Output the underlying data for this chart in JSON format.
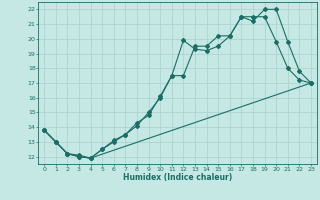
{
  "xlabel": "Humidex (Indice chaleur)",
  "xlim": [
    -0.5,
    23.5
  ],
  "ylim": [
    11.5,
    22.5
  ],
  "xticks": [
    0,
    1,
    2,
    3,
    4,
    5,
    6,
    7,
    8,
    9,
    10,
    11,
    12,
    13,
    14,
    15,
    16,
    17,
    18,
    19,
    20,
    21,
    22,
    23
  ],
  "yticks": [
    12,
    13,
    14,
    15,
    16,
    17,
    18,
    19,
    20,
    21,
    22
  ],
  "bg_color": "#c5e8e5",
  "line_color": "#1a6e64",
  "grid_color": "#aacfcc",
  "line1_x": [
    0,
    1,
    2,
    3,
    4,
    5,
    6,
    7,
    8,
    9,
    10,
    11,
    12,
    13,
    14,
    15,
    16,
    17,
    18,
    19,
    20,
    21,
    22,
    23
  ],
  "line1_y": [
    13.8,
    13.0,
    12.2,
    12.0,
    11.9,
    12.5,
    13.1,
    13.5,
    14.3,
    14.8,
    16.1,
    17.5,
    19.9,
    19.3,
    19.2,
    19.5,
    20.2,
    21.5,
    21.2,
    22.0,
    22.0,
    19.8,
    17.8,
    17.0
  ],
  "line2_x": [
    0,
    1,
    2,
    3,
    4,
    5,
    6,
    7,
    8,
    9,
    10,
    11,
    12,
    13,
    14,
    15,
    16,
    17,
    18,
    19,
    20,
    21,
    22,
    23
  ],
  "line2_y": [
    13.8,
    13.0,
    12.2,
    12.1,
    11.9,
    12.5,
    13.0,
    13.5,
    14.1,
    15.0,
    16.0,
    17.5,
    17.5,
    19.5,
    19.5,
    20.2,
    20.2,
    21.5,
    21.5,
    21.5,
    19.8,
    18.0,
    17.2,
    17.0
  ],
  "line3_x": [
    0,
    1,
    2,
    3,
    4,
    23
  ],
  "line3_y": [
    13.8,
    13.0,
    12.2,
    12.0,
    11.9,
    17.0
  ]
}
